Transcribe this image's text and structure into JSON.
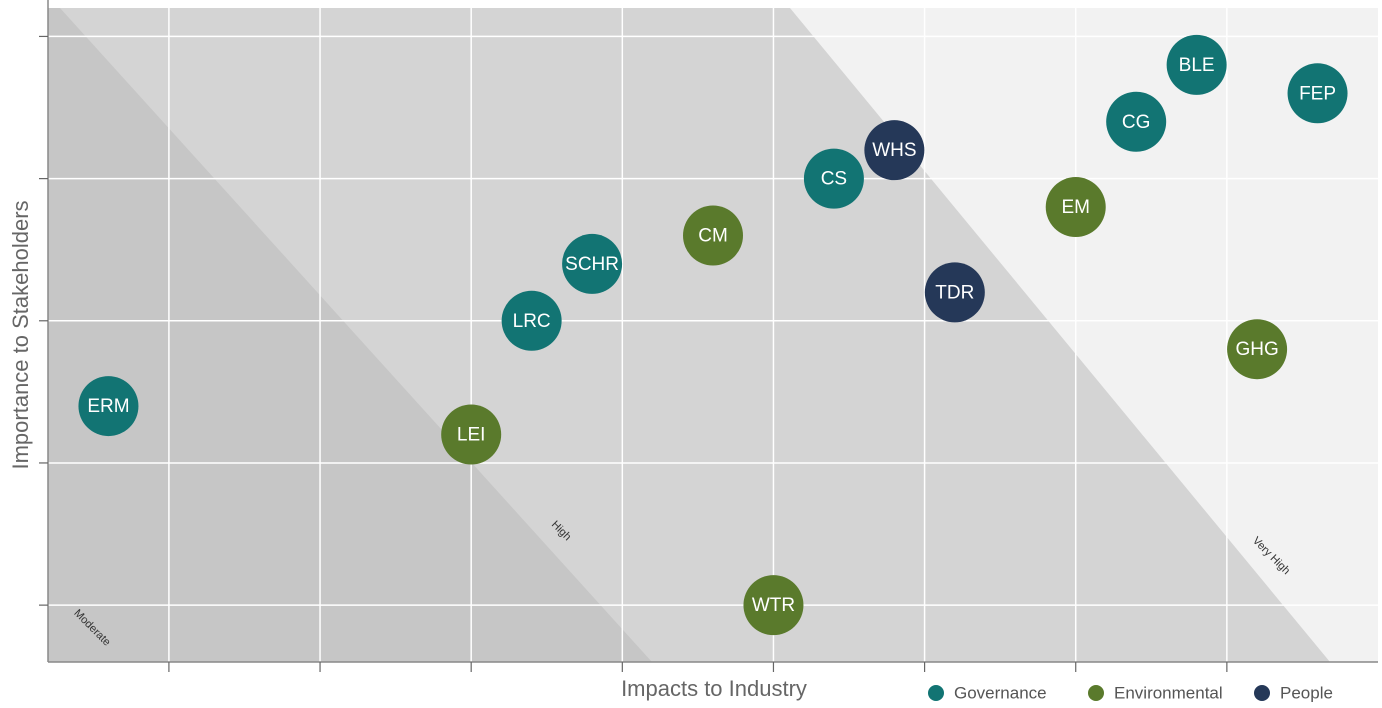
{
  "chart_data": {
    "type": "bubble",
    "x_label": "Impacts to Industry",
    "y_label": "Importance to Stakeholders",
    "zones": [
      "Moderate",
      "High",
      "Very High"
    ],
    "xlim": [
      0.2,
      9
    ],
    "ylim": [
      0.6,
      5.2
    ],
    "xticks": [
      1,
      2,
      3,
      4,
      5,
      6,
      7,
      8
    ],
    "yticks": [
      1,
      2,
      3,
      4,
      5
    ],
    "grid": true,
    "legend": "bottom-right",
    "series": [
      {
        "name": "Governance",
        "color": "#127473",
        "labels": [
          "ERM",
          "LRC",
          "SCHR",
          "CS",
          "CG",
          "BLE",
          "FEP"
        ],
        "x": [
          0.6,
          3.4,
          3.8,
          5.4,
          7.4,
          7.8,
          8.6
        ],
        "y": [
          2.4,
          3.0,
          3.4,
          4.0,
          4.4,
          4.8,
          4.6
        ]
      },
      {
        "name": "Environmental",
        "color": "#5a7a2c",
        "labels": [
          "LEI",
          "CM",
          "WTR",
          "EM",
          "GHG"
        ],
        "x": [
          3.0,
          4.6,
          5.0,
          7.0,
          8.2
        ],
        "y": [
          2.2,
          3.6,
          1.0,
          3.8,
          2.8
        ]
      },
      {
        "name": "People",
        "color": "#253858",
        "labels": [
          "WHS",
          "TDR"
        ],
        "x": [
          5.8,
          6.2
        ],
        "y": [
          4.2,
          3.2
        ]
      }
    ]
  }
}
